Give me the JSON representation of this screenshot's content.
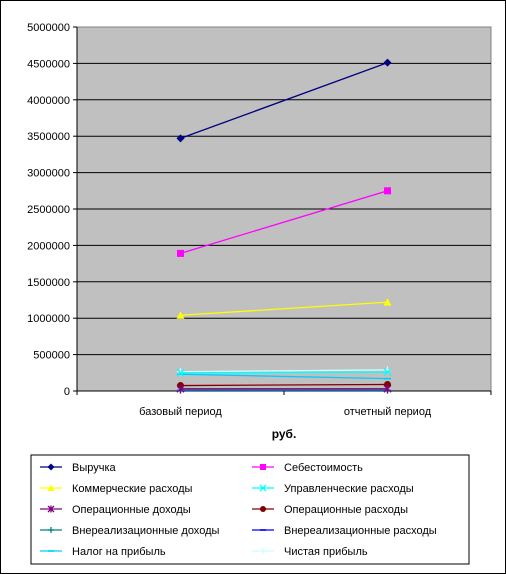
{
  "chart_data": {
    "type": "line",
    "categories": [
      "базовый период",
      "отчетный период"
    ],
    "xlabel": "руб.",
    "ylim": [
      0,
      5000000
    ],
    "yticks": [
      "0",
      "500000",
      "1000000",
      "1500000",
      "2000000",
      "2500000",
      "3000000",
      "3500000",
      "4000000",
      "4500000",
      "5000000"
    ],
    "grid": true,
    "legend_position": "bottom",
    "plot_background": "#c0c0c0",
    "series": [
      {
        "name": "Выручка",
        "values": [
          3470000,
          4510000
        ],
        "color": "#000080",
        "marker": "diamond"
      },
      {
        "name": "Себестоимость",
        "values": [
          1890000,
          2750000
        ],
        "color": "#ff00ff",
        "marker": "square"
      },
      {
        "name": "Коммерческие расходы",
        "values": [
          1040000,
          1220000
        ],
        "color": "#ffff00",
        "marker": "triangle"
      },
      {
        "name": "Управленческие расходы",
        "values": [
          250000,
          260000
        ],
        "color": "#00ffff",
        "marker": "x"
      },
      {
        "name": "Операционные доходы",
        "values": [
          30000,
          30000
        ],
        "color": "#800080",
        "marker": "star"
      },
      {
        "name": "Операционные расходы",
        "values": [
          75000,
          90000
        ],
        "color": "#800000",
        "marker": "circle"
      },
      {
        "name": "Внереализационные доходы",
        "values": [
          10000,
          10000
        ],
        "color": "#008080",
        "marker": "plus"
      },
      {
        "name": "Внереализационные расходы",
        "values": [
          5000,
          5000
        ],
        "color": "#0000ff",
        "marker": "dash"
      },
      {
        "name": "Налог на прибыль",
        "values": [
          230000,
          170000
        ],
        "color": "#00ccff",
        "marker": "dash"
      },
      {
        "name": "Чистая прибыль",
        "values": [
          265000,
          290000
        ],
        "color": "#ccffff",
        "marker": "plus"
      }
    ]
  }
}
